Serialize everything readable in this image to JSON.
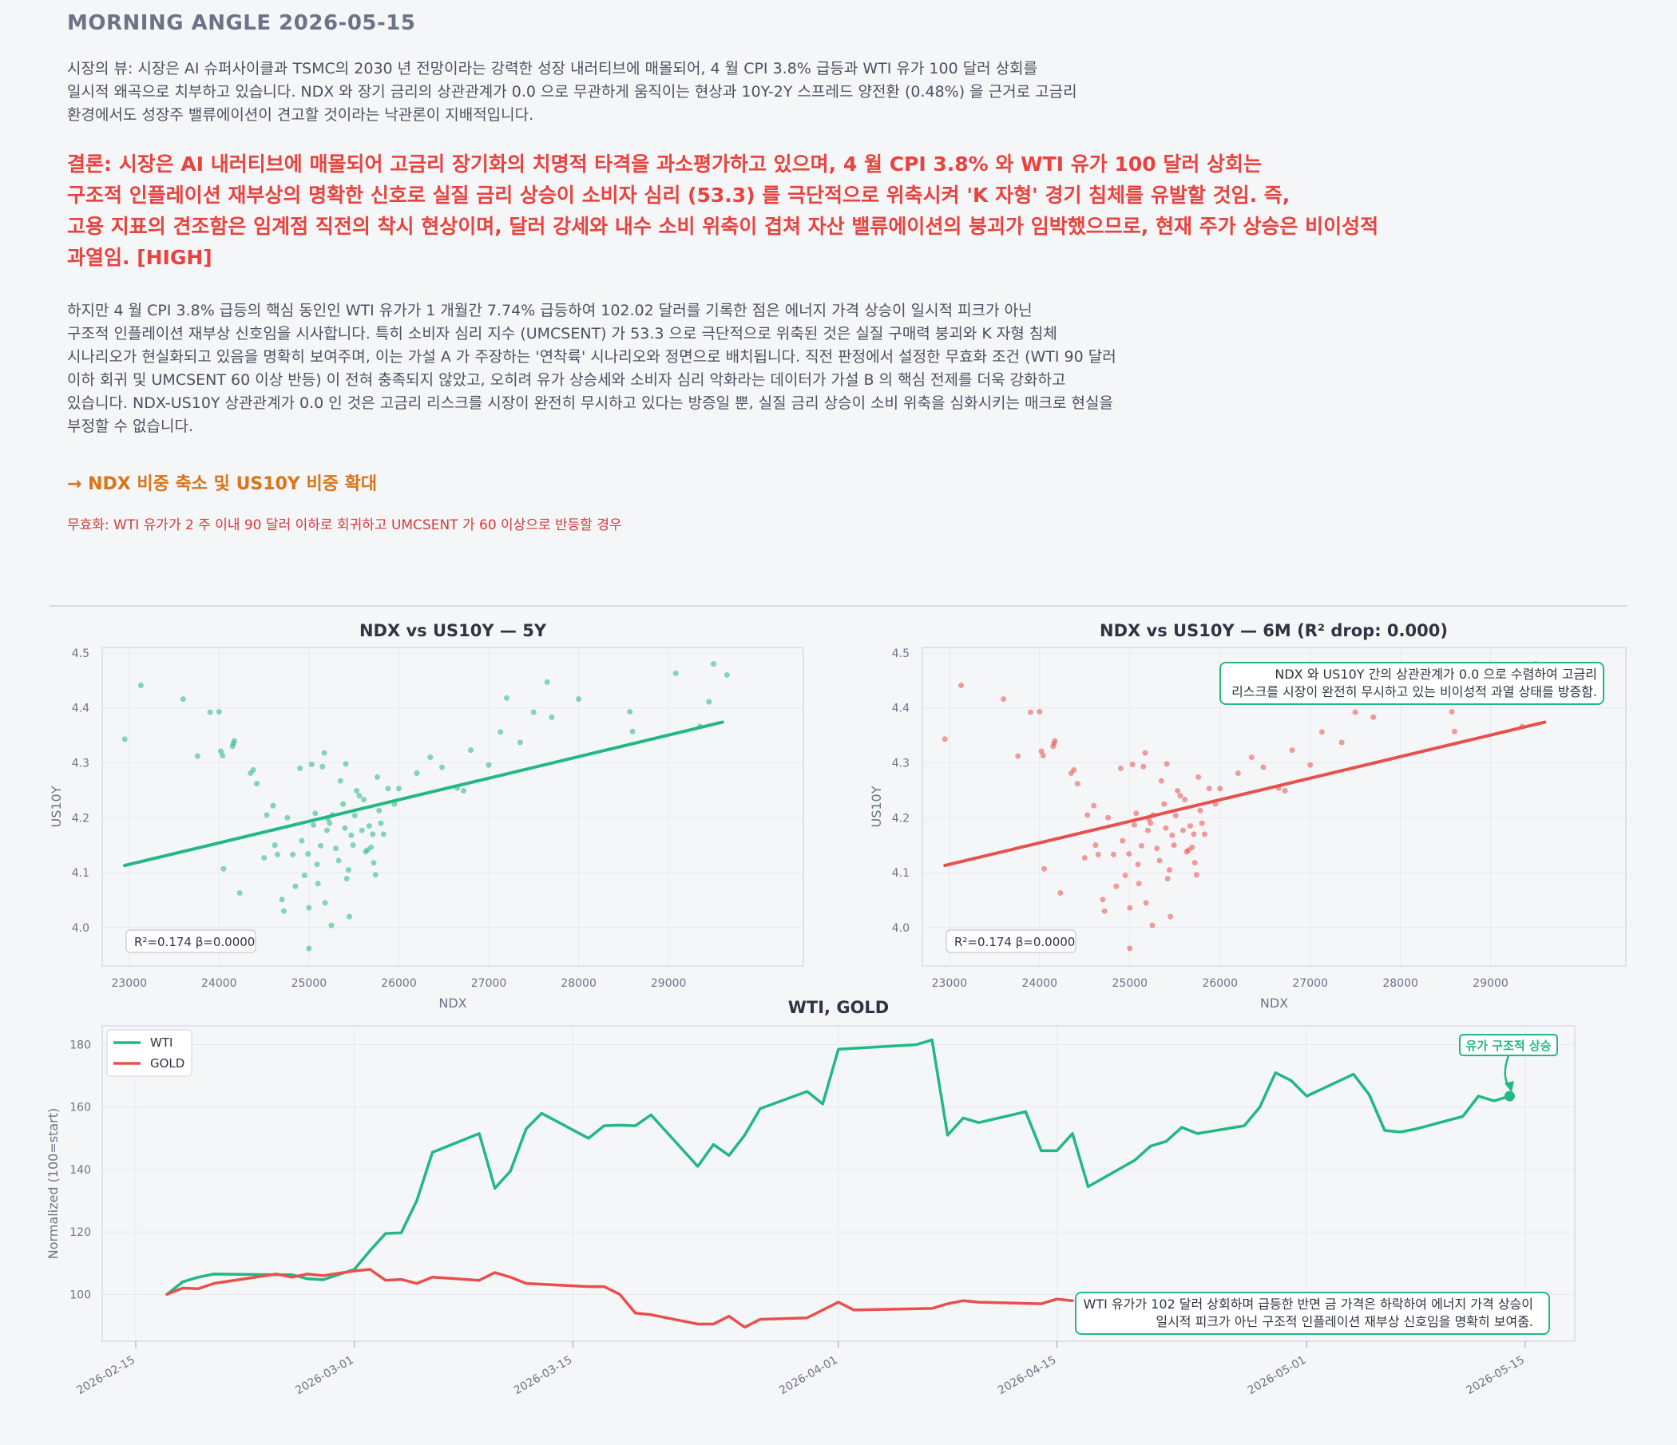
{
  "header": {
    "title": "MORNING ANGLE  2026-05-15"
  },
  "market_view": "시장의 뷰: 시장은 AI 슈퍼사이클과 TSMC의 2030 년 전망이라는 강력한 성장 내러티브에 매몰되어, 4 월 CPI 3.8% 급등과 WTI 유가 100 달러 상회를\n일시적 왜곡으로 치부하고 있습니다. NDX 와 장기 금리의 상관관계가 0.0 으로 무관하게 움직이는 현상과 10Y-2Y 스프레드 양전환 (0.48%) 을 근거로 고금리\n환경에서도 성장주 밸류에이션이 견고할 것이라는 낙관론이 지배적입니다.",
  "conclusion": "결론: 시장은 AI 내러티브에 매몰되어 고금리 장기화의 치명적 타격을 과소평가하고 있으며, 4 월 CPI 3.8% 와 WTI 유가 100 달러 상회는\n구조적 인플레이션 재부상의 명확한 신호로 실질 금리 상승이 소비자 심리 (53.3) 를 극단적으로 위축시켜 'K 자형' 경기 침체를 유발할 것임. 즉,\n고용 지표의 견조함은 임계점 직전의 착시 현상이며, 달러 강세와 내수 소비 위축이 겹쳐 자산 밸류에이션의 붕괴가 임박했으므로, 현재 주가 상승은 비이성적\n과열임.  [HIGH]",
  "analysis": "하지만 4 월 CPI 3.8% 급등의 핵심 동인인 WTI 유가가 1 개월간 7.74% 급등하여 102.02 달러를 기록한 점은 에너지 가격 상승이 일시적 피크가 아닌\n구조적 인플레이션 재부상 신호임을 시사합니다. 특히 소비자 심리 지수 (UMCSENT) 가 53.3 으로 극단적으로 위축된 것은 실질 구매력 붕괴와 K 자형 침체\n시나리오가 현실화되고 있음을 명확히 보여주며, 이는 가설 A 가 주장하는 '연착륙' 시나리오와 정면으로 배치됩니다. 직전 판정에서 설정한 무효화 조건 (WTI 90 달러\n이하 회귀 및 UMCSENT 60 이상 반등) 이 전혀 충족되지 않았고, 오히려 유가 상승세와 소비자 심리 악화라는 데이터가 가설 B 의 핵심 전제를 더욱 강화하고\n있습니다. NDX-US10Y 상관관계가 0.0 인 것은 고금리 리스크를 시장이 완전히 무시하고 있다는 방증일 뿐, 실질 금리 상승이 소비 위축을 심화시키는 매크로 현실을\n부정할 수 없습니다.",
  "action": "→ NDX 비중 축소 및 US10Y 비중 확대",
  "invalidation": "무효화: WTI 유가가 2 주 이내 90 달러 이하로 회귀하고 UMCSENT 가 60 이상으로 반등할 경우",
  "colors": {
    "green": "#22b884",
    "red": "#e8504c",
    "orange": "#d9741a",
    "title_red": "#e8433e"
  },
  "chart_data": [
    {
      "type": "scatter",
      "title": "NDX vs US10Y — 5Y",
      "xlabel": "NDX",
      "ylabel": "US10Y",
      "xlim": [
        22700,
        30500
      ],
      "ylim": [
        3.93,
        4.51
      ],
      "xticks": [
        23000,
        24000,
        25000,
        26000,
        27000,
        28000,
        29000
      ],
      "yticks": [
        4.0,
        4.1,
        4.2,
        4.3,
        4.4,
        4.5
      ],
      "color": "#22b884",
      "stats_label": "R²=0.174  β=0.0000",
      "fit": [
        [
          22950,
          4.113
        ],
        [
          29600,
          4.374
        ]
      ],
      "points": [
        [
          22950,
          4.343
        ],
        [
          23130,
          4.441
        ],
        [
          23600,
          4.416
        ],
        [
          23760,
          4.312
        ],
        [
          23900,
          4.392
        ],
        [
          24000,
          4.393
        ],
        [
          24020,
          4.321
        ],
        [
          24040,
          4.313
        ],
        [
          24150,
          4.33
        ],
        [
          24170,
          4.34
        ],
        [
          24160,
          4.335
        ],
        [
          24050,
          4.107
        ],
        [
          24230,
          4.063
        ],
        [
          24350,
          4.281
        ],
        [
          24380,
          4.287
        ],
        [
          24420,
          4.262
        ],
        [
          24500,
          4.127
        ],
        [
          24530,
          4.205
        ],
        [
          24600,
          4.222
        ],
        [
          24620,
          4.15
        ],
        [
          24650,
          4.133
        ],
        [
          24700,
          4.051
        ],
        [
          24720,
          4.03
        ],
        [
          24760,
          4.2
        ],
        [
          24820,
          4.133
        ],
        [
          24850,
          4.075
        ],
        [
          24900,
          4.29
        ],
        [
          24920,
          4.158
        ],
        [
          24950,
          4.095
        ],
        [
          24990,
          4.134
        ],
        [
          25000,
          4.036
        ],
        [
          25030,
          4.297
        ],
        [
          25000,
          3.962
        ],
        [
          25050,
          4.187
        ],
        [
          25070,
          4.208
        ],
        [
          25090,
          4.115
        ],
        [
          25100,
          4.08
        ],
        [
          25130,
          4.149
        ],
        [
          25150,
          4.293
        ],
        [
          25170,
          4.318
        ],
        [
          25180,
          4.045
        ],
        [
          25200,
          4.177
        ],
        [
          25210,
          4.198
        ],
        [
          25230,
          4.19
        ],
        [
          25250,
          4.004
        ],
        [
          25260,
          4.205
        ],
        [
          25300,
          4.144
        ],
        [
          25330,
          4.122
        ],
        [
          25350,
          4.267
        ],
        [
          25380,
          4.225
        ],
        [
          25400,
          4.181
        ],
        [
          25410,
          4.298
        ],
        [
          25420,
          4.089
        ],
        [
          25440,
          4.105
        ],
        [
          25450,
          4.02
        ],
        [
          25470,
          4.168
        ],
        [
          25490,
          4.15
        ],
        [
          25510,
          4.204
        ],
        [
          25530,
          4.249
        ],
        [
          25560,
          4.24
        ],
        [
          25590,
          4.177
        ],
        [
          25610,
          4.233
        ],
        [
          25630,
          4.138
        ],
        [
          25650,
          4.141
        ],
        [
          25670,
          4.185
        ],
        [
          25690,
          4.146
        ],
        [
          25710,
          4.17
        ],
        [
          25720,
          4.118
        ],
        [
          25740,
          4.096
        ],
        [
          25760,
          4.274
        ],
        [
          25780,
          4.213
        ],
        [
          25800,
          4.19
        ],
        [
          25830,
          4.17
        ],
        [
          25880,
          4.253
        ],
        [
          25950,
          4.225
        ],
        [
          26000,
          4.253
        ],
        [
          26200,
          4.281
        ],
        [
          26350,
          4.31
        ],
        [
          26480,
          4.292
        ],
        [
          26650,
          4.254
        ],
        [
          26720,
          4.249
        ],
        [
          26800,
          4.323
        ],
        [
          27000,
          4.296
        ],
        [
          27130,
          4.356
        ],
        [
          27200,
          4.418
        ],
        [
          27350,
          4.337
        ],
        [
          27500,
          4.392
        ],
        [
          27650,
          4.447
        ],
        [
          27700,
          4.383
        ],
        [
          28000,
          4.416
        ],
        [
          28570,
          4.393
        ],
        [
          28600,
          4.357
        ],
        [
          29080,
          4.463
        ],
        [
          29350,
          4.366
        ],
        [
          29450,
          4.411
        ],
        [
          29500,
          4.48
        ],
        [
          29650,
          4.46
        ]
      ]
    },
    {
      "type": "scatter",
      "title": "NDX vs US10Y — 6M (R² drop: 0.000)",
      "xlabel": "NDX",
      "ylabel": "US10Y",
      "xlim": [
        22700,
        30500
      ],
      "ylim": [
        3.93,
        4.51
      ],
      "xticks": [
        23000,
        24000,
        25000,
        26000,
        27000,
        28000,
        29000
      ],
      "yticks": [
        4.0,
        4.1,
        4.2,
        4.3,
        4.4,
        4.5
      ],
      "color": "#e8504c",
      "stats_label": "R²=0.174  β=0.0000",
      "annotation": "NDX 와 US10Y 간의 상관관계가 0.0 으로 수렴하여 고금리\n리스크를 시장이 완전히 무시하고 있는 비이성적 과열 상태를 방증함.",
      "fit": [
        [
          22950,
          4.113
        ],
        [
          29600,
          4.374
        ]
      ],
      "points": "same as 5Y panel"
    },
    {
      "type": "line",
      "title": "WTI, GOLD",
      "ylabel": "Normalized (100=start)",
      "ylim": [
        85,
        186
      ],
      "yticks": [
        100,
        120,
        140,
        160,
        180
      ],
      "xticks": [
        "2026-02-15",
        "2026-03-01",
        "2026-03-15",
        "2026-04-01",
        "2026-04-15",
        "2026-05-01",
        "2026-05-15"
      ],
      "legend_position": "top-left",
      "series": [
        {
          "name": "WTI",
          "color": "#22b884",
          "points": [
            [
              "2026-02-17",
              100
            ],
            [
              "2026-02-18",
              104
            ],
            [
              "2026-02-19",
              105.5
            ],
            [
              "2026-02-20",
              106.5
            ],
            [
              "2026-02-24",
              106.3
            ],
            [
              "2026-02-25",
              106.3
            ],
            [
              "2026-02-26",
              105
            ],
            [
              "2026-02-27",
              104.7
            ],
            [
              "2026-03-01",
              108
            ],
            [
              "2026-03-02",
              114
            ],
            [
              "2026-03-03",
              119.5
            ],
            [
              "2026-03-04",
              119.7
            ],
            [
              "2026-03-05",
              130
            ],
            [
              "2026-03-06",
              145.5
            ],
            [
              "2026-03-09",
              151.5
            ],
            [
              "2026-03-10",
              134
            ],
            [
              "2026-03-11",
              139.5
            ],
            [
              "2026-03-12",
              153
            ],
            [
              "2026-03-13",
              158
            ],
            [
              "2026-03-16",
              150
            ],
            [
              "2026-03-17",
              154
            ],
            [
              "2026-03-18",
              154.2
            ],
            [
              "2026-03-19",
              154
            ],
            [
              "2026-03-20",
              157.5
            ],
            [
              "2026-03-23",
              141
            ],
            [
              "2026-03-24",
              148
            ],
            [
              "2026-03-25",
              144.5
            ],
            [
              "2026-03-26",
              151
            ],
            [
              "2026-03-27",
              159.5
            ],
            [
              "2026-03-30",
              165
            ],
            [
              "2026-03-31",
              161
            ],
            [
              "2026-04-01",
              178.5
            ],
            [
              "2026-04-06",
              180
            ],
            [
              "2026-04-07",
              181.5
            ],
            [
              "2026-04-08",
              151
            ],
            [
              "2026-04-09",
              156.5
            ],
            [
              "2026-04-10",
              155
            ],
            [
              "2026-04-13",
              158.5
            ],
            [
              "2026-04-14",
              146
            ],
            [
              "2026-04-15",
              146
            ],
            [
              "2026-04-16",
              151.5
            ],
            [
              "2026-04-17",
              134.5
            ],
            [
              "2026-04-20",
              143
            ],
            [
              "2026-04-21",
              147.5
            ],
            [
              "2026-04-22",
              149
            ],
            [
              "2026-04-23",
              153.5
            ],
            [
              "2026-04-24",
              151.5
            ],
            [
              "2026-04-27",
              154
            ],
            [
              "2026-04-28",
              160
            ],
            [
              "2026-04-29",
              171
            ],
            [
              "2026-04-30",
              168.5
            ],
            [
              "2026-05-01",
              163.5
            ],
            [
              "2026-05-04",
              170.5
            ],
            [
              "2026-05-05",
              164
            ],
            [
              "2026-05-06",
              152.5
            ],
            [
              "2026-05-07",
              152
            ],
            [
              "2026-05-08",
              153
            ],
            [
              "2026-05-11",
              157
            ],
            [
              "2026-05-12",
              163.5
            ],
            [
              "2026-05-13",
              162
            ],
            [
              "2026-05-14",
              163.5
            ]
          ]
        },
        {
          "name": "GOLD",
          "color": "#e8504c",
          "points": [
            [
              "2026-02-17",
              100
            ],
            [
              "2026-02-18",
              102
            ],
            [
              "2026-02-19",
              101.8
            ],
            [
              "2026-02-20",
              103.5
            ],
            [
              "2026-02-24",
              106.5
            ],
            [
              "2026-02-25",
              105.5
            ],
            [
              "2026-02-26",
              106.5
            ],
            [
              "2026-02-27",
              106
            ],
            [
              "2026-03-01",
              107.5
            ],
            [
              "2026-03-02",
              108
            ],
            [
              "2026-03-03",
              104.5
            ],
            [
              "2026-03-04",
              104.8
            ],
            [
              "2026-03-05",
              103.5
            ],
            [
              "2026-03-06",
              105.5
            ],
            [
              "2026-03-09",
              104.5
            ],
            [
              "2026-03-10",
              107
            ],
            [
              "2026-03-11",
              105.5
            ],
            [
              "2026-03-12",
              103.5
            ],
            [
              "2026-03-16",
              102.5
            ],
            [
              "2026-03-17",
              102.5
            ],
            [
              "2026-03-18",
              100
            ],
            [
              "2026-03-19",
              94
            ],
            [
              "2026-03-20",
              93.5
            ],
            [
              "2026-03-23",
              90.5
            ],
            [
              "2026-03-24",
              90.5
            ],
            [
              "2026-03-25",
              93
            ],
            [
              "2026-03-26",
              89.5
            ],
            [
              "2026-03-27",
              92
            ],
            [
              "2026-03-30",
              92.5
            ],
            [
              "2026-03-31",
              95
            ],
            [
              "2026-04-01",
              97.5
            ],
            [
              "2026-04-02",
              95
            ],
            [
              "2026-04-07",
              95.5
            ],
            [
              "2026-04-08",
              97
            ],
            [
              "2026-04-09",
              98
            ],
            [
              "2026-04-10",
              97.5
            ],
            [
              "2026-04-14",
              97
            ],
            [
              "2026-04-15",
              98.5
            ],
            [
              "2026-04-16",
              98
            ]
          ]
        }
      ],
      "annotations": [
        {
          "text": "유가 구조적 상승",
          "point": [
            "2026-05-14",
            163.5
          ]
        },
        {
          "text": "WTI 유가가 102 달러 상회하며 급등한 반면 금 가격은 하락하여 에너지 가격 상승이\n일시적 피크가 아닌 구조적 인플레이션 재부상 신호임을 명확히 보여줌."
        }
      ]
    }
  ]
}
